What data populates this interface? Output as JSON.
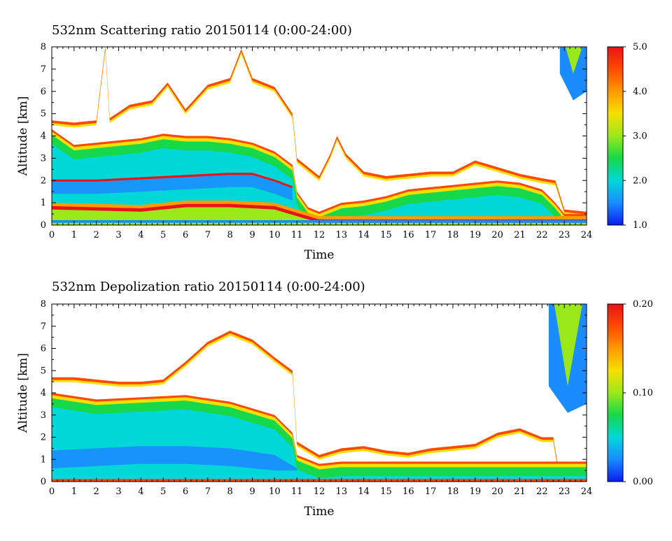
{
  "chart_data": [
    {
      "type": "heatmap",
      "title": "532nm Scattering ratio  20150114 (0:00-24:00)",
      "xlabel": "Time",
      "ylabel": "Altitude [km]",
      "xlim": [
        0,
        24
      ],
      "ylim": [
        0,
        8
      ],
      "xticks": [
        "0",
        "1",
        "2",
        "3",
        "4",
        "5",
        "6",
        "7",
        "8",
        "9",
        "10",
        "11",
        "12",
        "13",
        "14",
        "15",
        "16",
        "17",
        "18",
        "19",
        "20",
        "21",
        "22",
        "23",
        "24"
      ],
      "yticks": [
        "0",
        "1",
        "2",
        "3",
        "4",
        "5",
        "6",
        "7",
        "8"
      ],
      "colorbar": {
        "min": 1.0,
        "max": 5.0,
        "ticks": [
          "1.0",
          "2.0",
          "3.0",
          "4.0",
          "5.0"
        ]
      },
      "colormap": [
        "#0a1cf0",
        "#1a8cff",
        "#00d8d8",
        "#16d84a",
        "#9be81a",
        "#f4e000",
        "#ff9a00",
        "#ff4a00",
        "#e8141a"
      ],
      "cloud_top_km": [
        [
          0,
          4.7
        ],
        [
          1,
          4.6
        ],
        [
          2,
          4.7
        ],
        [
          2.4,
          8.0
        ],
        [
          2.6,
          4.8
        ],
        [
          3.5,
          5.4
        ],
        [
          4.5,
          5.6
        ],
        [
          5.2,
          6.4
        ],
        [
          6,
          5.2
        ],
        [
          7,
          6.3
        ],
        [
          8,
          6.6
        ],
        [
          8.5,
          7.9
        ],
        [
          9,
          6.6
        ],
        [
          10,
          6.2
        ],
        [
          10.8,
          5.0
        ],
        [
          11,
          3.0
        ],
        [
          11.5,
          2.6
        ],
        [
          12,
          2.2
        ],
        [
          12.5,
          3.2
        ],
        [
          12.8,
          4.0
        ],
        [
          13.2,
          3.2
        ],
        [
          14,
          2.4
        ],
        [
          15,
          2.2
        ],
        [
          16,
          2.3
        ],
        [
          17,
          2.4
        ],
        [
          18,
          2.4
        ],
        [
          19,
          2.9
        ],
        [
          20,
          2.6
        ],
        [
          21,
          2.3
        ],
        [
          22,
          2.1
        ],
        [
          22.6,
          2.0
        ],
        [
          23,
          0.7
        ],
        [
          24,
          0.6
        ]
      ],
      "dense_layer_top_km": [
        [
          0,
          4.3
        ],
        [
          1,
          3.6
        ],
        [
          2,
          3.7
        ],
        [
          3,
          3.8
        ],
        [
          4,
          3.9
        ],
        [
          5,
          4.1
        ],
        [
          6,
          4.0
        ],
        [
          7,
          4.0
        ],
        [
          8,
          3.9
        ],
        [
          9,
          3.7
        ],
        [
          10,
          3.3
        ],
        [
          10.8,
          2.7
        ],
        [
          11,
          1.5
        ],
        [
          11.5,
          0.8
        ],
        [
          12,
          0.6
        ],
        [
          13,
          1.0
        ],
        [
          14,
          1.1
        ],
        [
          15,
          1.3
        ],
        [
          16,
          1.6
        ],
        [
          17,
          1.7
        ],
        [
          18,
          1.8
        ],
        [
          19,
          1.9
        ],
        [
          20,
          2.0
        ],
        [
          21,
          1.9
        ],
        [
          22,
          1.6
        ],
        [
          22.6,
          1.0
        ],
        [
          23,
          0.5
        ],
        [
          24,
          0.5
        ]
      ],
      "core_layer_km": [
        [
          0,
          2.0
        ],
        [
          2,
          2.0
        ],
        [
          4,
          2.1
        ],
        [
          6,
          2.2
        ],
        [
          8,
          2.3
        ],
        [
          9,
          2.3
        ],
        [
          10,
          2.0
        ],
        [
          10.8,
          1.7
        ]
      ],
      "boundary_layer_top_km": [
        [
          0,
          1.0
        ],
        [
          4,
          0.9
        ],
        [
          6,
          1.1
        ],
        [
          8,
          1.1
        ],
        [
          10,
          1.0
        ],
        [
          11,
          0.7
        ],
        [
          12,
          0.4
        ],
        [
          24,
          0.4
        ]
      ],
      "upper_feature": {
        "x_range": [
          22.8,
          24.0
        ],
        "top_km": 8.0,
        "bottom_km": 5.6
      }
    },
    {
      "type": "heatmap",
      "title": "532nm Depolization ratio  20150114 (0:00-24:00)",
      "xlabel": "Time",
      "ylabel": "Altitude [km]",
      "xlim": [
        0,
        24
      ],
      "ylim": [
        0,
        8
      ],
      "xticks": [
        "0",
        "1",
        "2",
        "3",
        "4",
        "5",
        "6",
        "7",
        "8",
        "9",
        "10",
        "11",
        "12",
        "13",
        "14",
        "15",
        "16",
        "17",
        "18",
        "19",
        "20",
        "21",
        "22",
        "23",
        "24"
      ],
      "yticks": [
        "0",
        "1",
        "2",
        "3",
        "4",
        "5",
        "6",
        "7",
        "8"
      ],
      "colorbar": {
        "min": 0.0,
        "max": 0.2,
        "ticks": [
          "0.00",
          "0.10",
          "0.20"
        ]
      },
      "colormap": [
        "#0a1cf0",
        "#1a8cff",
        "#00d8d8",
        "#16d84a",
        "#9be81a",
        "#f4e000",
        "#ff9a00",
        "#ff4a00",
        "#e8141a"
      ],
      "cloud_top_km": [
        [
          0,
          4.7
        ],
        [
          1,
          4.7
        ],
        [
          2,
          4.6
        ],
        [
          3,
          4.5
        ],
        [
          4,
          4.5
        ],
        [
          5,
          4.6
        ],
        [
          6,
          5.4
        ],
        [
          7,
          6.3
        ],
        [
          8,
          6.8
        ],
        [
          9,
          6.4
        ],
        [
          10,
          5.6
        ],
        [
          10.8,
          5.0
        ],
        [
          11,
          1.8
        ],
        [
          12,
          1.2
        ],
        [
          13,
          1.5
        ],
        [
          14,
          1.6
        ],
        [
          15,
          1.4
        ],
        [
          16,
          1.3
        ],
        [
          17,
          1.5
        ],
        [
          18,
          1.6
        ],
        [
          19,
          1.7
        ],
        [
          20,
          2.2
        ],
        [
          21,
          2.4
        ],
        [
          22,
          2.0
        ],
        [
          22.5,
          2.0
        ],
        [
          22.7,
          0.8
        ],
        [
          24,
          0.8
        ]
      ],
      "dense_layer_top_km": [
        [
          0,
          4.0
        ],
        [
          2,
          3.7
        ],
        [
          4,
          3.8
        ],
        [
          6,
          3.9
        ],
        [
          8,
          3.6
        ],
        [
          9,
          3.3
        ],
        [
          10,
          3.0
        ],
        [
          10.8,
          2.2
        ],
        [
          11,
          1.2
        ],
        [
          12,
          0.8
        ],
        [
          13,
          0.9
        ],
        [
          24,
          0.9
        ]
      ],
      "low_depol_band_km": [
        [
          0,
          1.4
        ],
        [
          2,
          1.5
        ],
        [
          4,
          1.6
        ],
        [
          6,
          1.6
        ],
        [
          8,
          1.5
        ],
        [
          10,
          1.2
        ],
        [
          11,
          0.6
        ]
      ],
      "upper_feature": {
        "x_range": [
          22.3,
          24.0
        ],
        "top_km": 8.0,
        "bottom_km": 3.1
      }
    }
  ]
}
